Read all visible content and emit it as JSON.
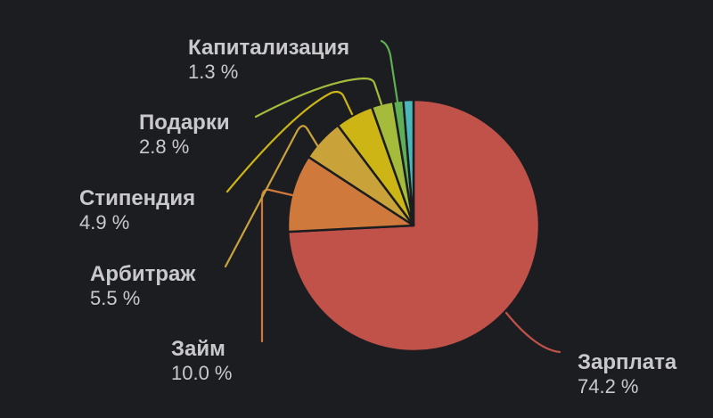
{
  "chart_data": {
    "type": "pie",
    "title": "",
    "start_angle": "12 o'clock, clockwise",
    "center": [
      464,
      253
    ],
    "radius": 141,
    "background": "#1c1d21",
    "label_color": "#c9c9cc",
    "slices": [
      {
        "name": "Зарплата",
        "value": 74.2,
        "label": "74.2 %",
        "color": "#c0524a",
        "labeled": true
      },
      {
        "name": "Займ",
        "value": 10.0,
        "label": "10.0 %",
        "color": "#cf7a3c",
        "labeled": true
      },
      {
        "name": "Арбитраж",
        "value": 5.5,
        "label": "5.5 %",
        "color": "#c9a23a",
        "labeled": true
      },
      {
        "name": "Стипендия",
        "value": 4.9,
        "label": "4.9 %",
        "color": "#cdb515",
        "labeled": true
      },
      {
        "name": "Подарки",
        "value": 2.8,
        "label": "2.8 %",
        "color": "#a4bb3c",
        "labeled": true
      },
      {
        "name": "Капитализация",
        "value": 1.3,
        "label": "1.3 %",
        "color": "#5faf55",
        "labeled": true
      },
      {
        "name": "",
        "value": 1.3,
        "label": "",
        "color": "#4ab8b8",
        "labeled": false
      }
    ]
  },
  "labels": {
    "zarplata": {
      "name": "Зарплата",
      "pct": "74.2 %"
    },
    "zaim": {
      "name": "Займ",
      "pct": "10.0 %"
    },
    "arbitrazh": {
      "name": "Арбитраж",
      "pct": "5.5 %"
    },
    "stipendiya": {
      "name": "Стипендия",
      "pct": "4.9 %"
    },
    "podarki": {
      "name": "Подарки",
      "pct": "2.8 %"
    },
    "kapitalizaciya": {
      "name": "Капитализация",
      "pct": "1.3 %"
    }
  }
}
